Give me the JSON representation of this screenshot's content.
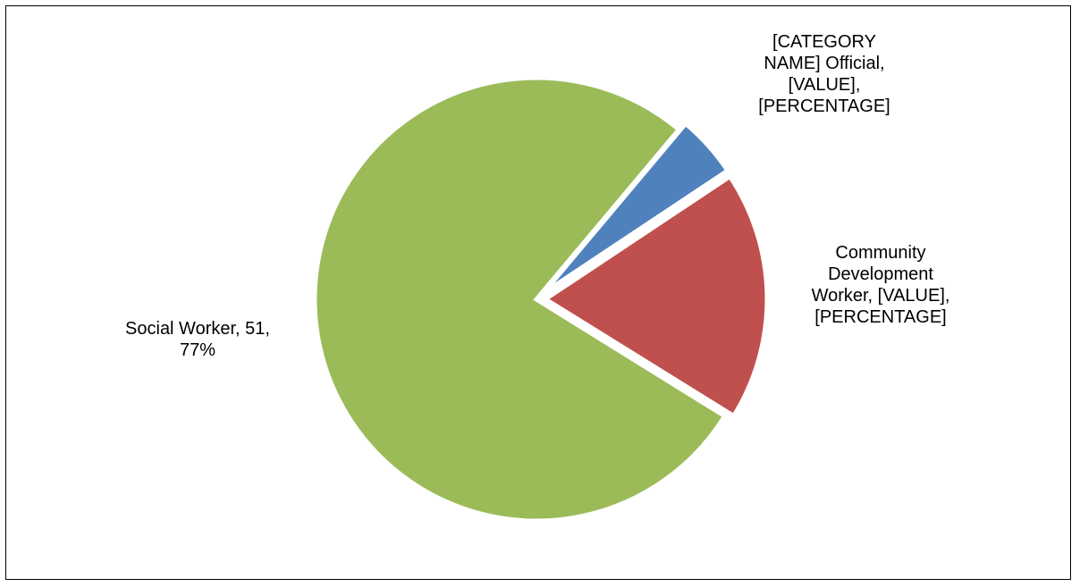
{
  "chart_data": {
    "type": "pie",
    "title": "",
    "slices": [
      {
        "name": "[CATEGORY NAME] Official",
        "value": 3,
        "percent": 4.5,
        "color": "#4F81BD",
        "label_lines": [
          "[CATEGORY",
          "NAME] Official,",
          "[VALUE],",
          "[PERCENTAGE]"
        ]
      },
      {
        "name": "Community Development Worker",
        "value": 12,
        "percent": 18.2,
        "color": "#C0504D",
        "label_lines": [
          "Community",
          "Development",
          "Worker, [VALUE],",
          "[PERCENTAGE]"
        ]
      },
      {
        "name": "Social Worker",
        "value": 51,
        "percent": 77,
        "color": "#9BBB59",
        "label_lines": [
          "Social Worker, 51,",
          "77%"
        ]
      }
    ],
    "legend": "none",
    "slice_border_color": "#FFFFFF"
  }
}
